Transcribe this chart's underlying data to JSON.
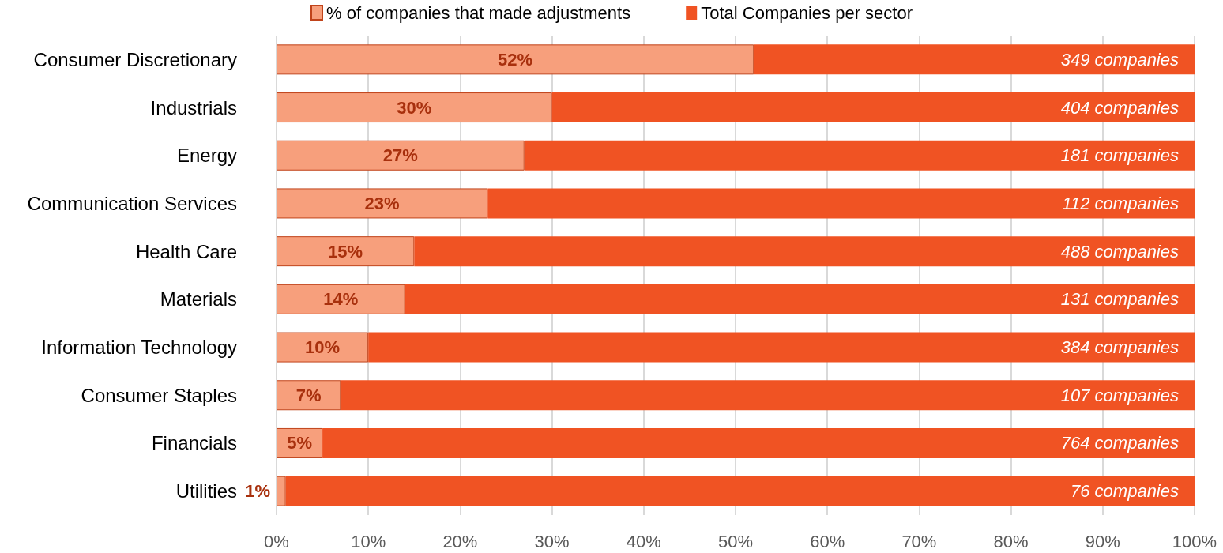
{
  "chart_data": {
    "type": "bar",
    "orientation": "horizontal",
    "stacked": true,
    "categories": [
      "Consumer Discretionary",
      "Industrials",
      "Energy",
      "Communication Services",
      "Health Care",
      "Materials",
      "Information Technology",
      "Consumer Staples",
      "Financials",
      "Utilities"
    ],
    "series": [
      {
        "name": "% of companies that made adjustments",
        "color": "#f79f7c",
        "values": [
          52,
          30,
          27,
          23,
          15,
          14,
          10,
          7,
          5,
          1
        ],
        "value_labels": [
          "52%",
          "30%",
          "27%",
          "23%",
          "15%",
          "14%",
          "10%",
          "7%",
          "5%",
          "1%"
        ]
      },
      {
        "name": "Total Companies per sector",
        "color": "#f05323",
        "values": [
          48,
          70,
          73,
          77,
          85,
          86,
          90,
          93,
          95,
          99
        ]
      }
    ],
    "annotations": [
      "349 companies",
      "404 companies",
      "181 companies",
      "112 companies",
      "488 companies",
      "131 companies",
      "384 companies",
      "107 companies",
      "764 companies",
      "76 companies"
    ],
    "xlim": [
      0,
      100
    ],
    "xticks": [
      {
        "value": 0,
        "label": "0%"
      },
      {
        "value": 10,
        "label": "10%"
      },
      {
        "value": 20,
        "label": "20%"
      },
      {
        "value": 30,
        "label": "30%"
      },
      {
        "value": 40,
        "label": "40%"
      },
      {
        "value": 50,
        "label": "50%"
      },
      {
        "value": 60,
        "label": "60%"
      },
      {
        "value": 70,
        "label": "70%"
      },
      {
        "value": 80,
        "label": "80%"
      },
      {
        "value": 90,
        "label": "90%"
      },
      {
        "value": 100,
        "label": "100%"
      }
    ],
    "grid": "x",
    "legend": "top"
  }
}
